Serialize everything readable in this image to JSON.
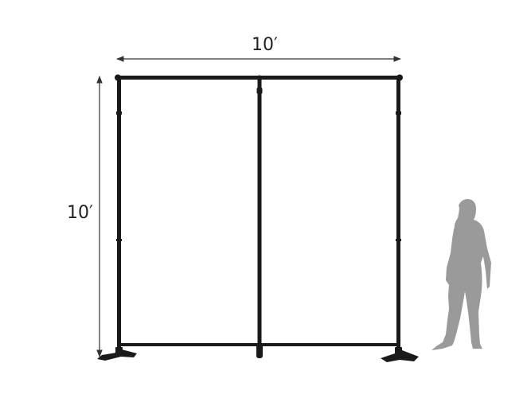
{
  "dimensions": {
    "width_label": "10′",
    "height_label": "10′"
  },
  "colors": {
    "frame": "#1a1a1a",
    "dimension_line": "#333333",
    "person_silhouette": "#9a9a9a",
    "background": "#ffffff"
  }
}
